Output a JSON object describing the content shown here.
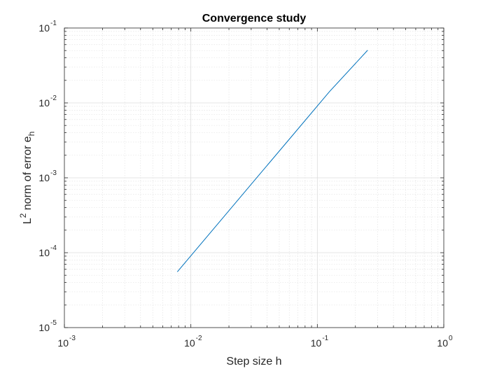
{
  "chart_data": {
    "type": "line",
    "title": "Convergence study",
    "xlabel": "Step size h",
    "ylabel": {
      "base": "L",
      "superscript": "2",
      "middle": " norm of error e",
      "subscript": "h"
    },
    "x_scale": "log",
    "y_scale": "log",
    "xlim": [
      0.001,
      1
    ],
    "ylim": [
      1e-05,
      0.1
    ],
    "x_ticks": [
      {
        "value": 0.001,
        "base": "10",
        "exp": "-3"
      },
      {
        "value": 0.01,
        "base": "10",
        "exp": "-2"
      },
      {
        "value": 0.1,
        "base": "10",
        "exp": "-1"
      },
      {
        "value": 1,
        "base": "10",
        "exp": "0"
      }
    ],
    "y_ticks": [
      {
        "value": 1e-05,
        "base": "10",
        "exp": "-5"
      },
      {
        "value": 0.0001,
        "base": "10",
        "exp": "-4"
      },
      {
        "value": 0.001,
        "base": "10",
        "exp": "-3"
      },
      {
        "value": 0.01,
        "base": "10",
        "exp": "-2"
      },
      {
        "value": 0.1,
        "base": "10",
        "exp": "-1"
      }
    ],
    "grid": true,
    "minor_grid": true,
    "series": [
      {
        "color": "#0072bd",
        "x": [
          0.0078125,
          0.015625,
          0.03125,
          0.0625,
          0.125,
          0.25
        ],
        "y": [
          5.55e-05,
          0.000222,
          0.00089,
          0.00355,
          0.0142,
          0.0505
        ]
      }
    ]
  }
}
